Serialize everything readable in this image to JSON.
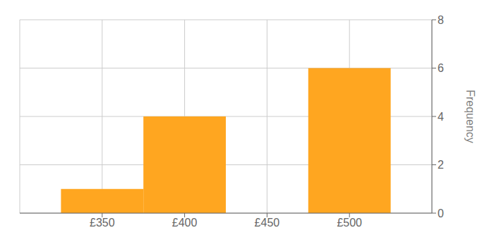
{
  "chart_data": {
    "type": "histogram",
    "bins": [
      325,
      375,
      425,
      475,
      525
    ],
    "values": [
      1,
      4,
      0,
      6
    ],
    "color": "#FFA620",
    "xlim": [
      300,
      550
    ],
    "xticks": [
      {
        "value": 350,
        "label": "£350"
      },
      {
        "value": 400,
        "label": "£400"
      },
      {
        "value": 450,
        "label": "£450"
      },
      {
        "value": 500,
        "label": "£500"
      }
    ],
    "ylim": [
      0,
      8
    ],
    "yticks": [
      0,
      2,
      4,
      6,
      8
    ],
    "ylabel": "Frequency",
    "grid": true
  }
}
